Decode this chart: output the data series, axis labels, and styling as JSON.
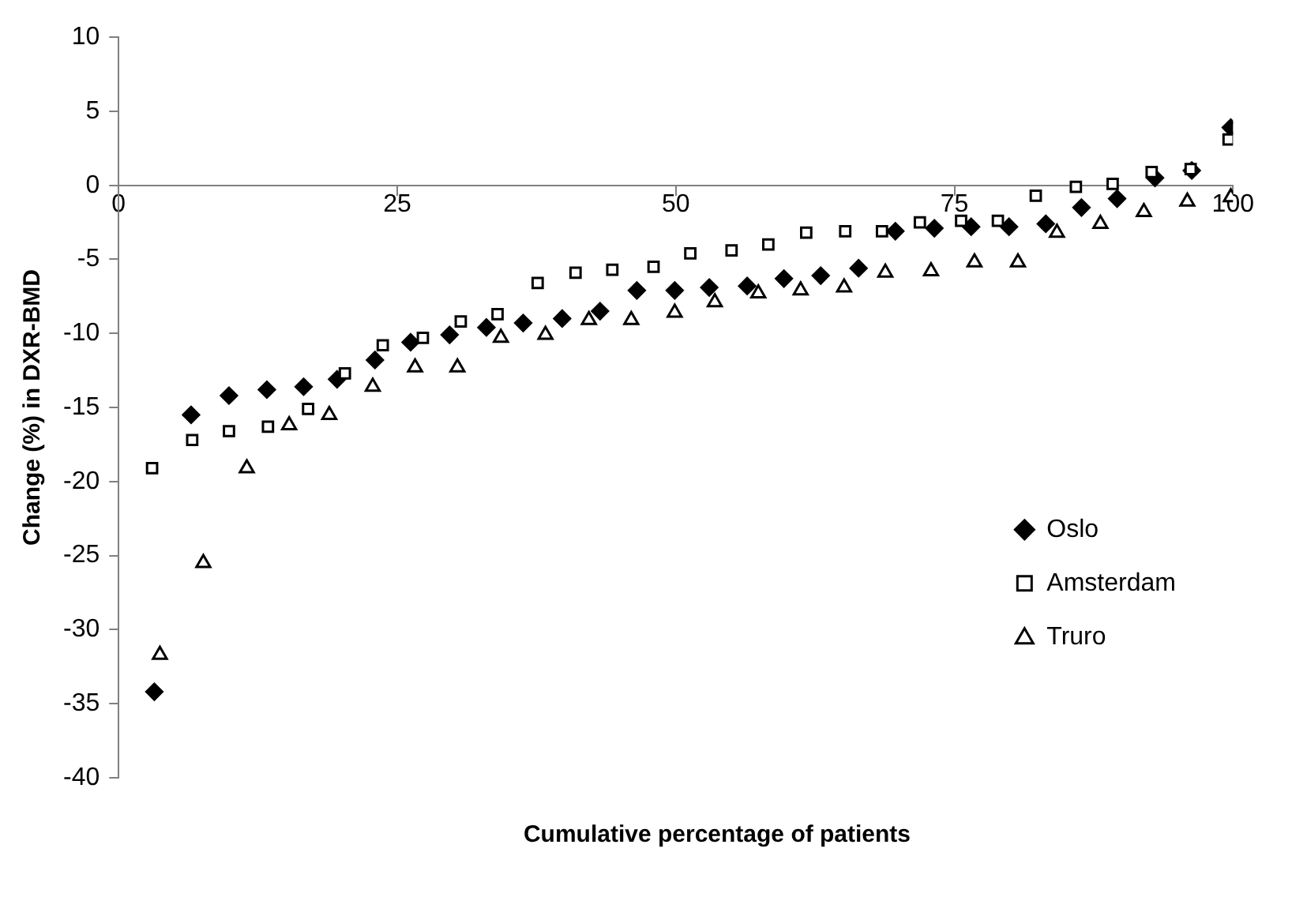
{
  "chart_data": {
    "type": "scatter",
    "xlabel": "Cumulative percentage of patients",
    "ylabel": "Change (%) in DXR-BMD",
    "xlim": [
      0,
      100
    ],
    "xticks": [
      0,
      25,
      50,
      75,
      100
    ],
    "ylim": [
      -40,
      10
    ],
    "yticks": [
      10,
      5,
      0,
      -5,
      -10,
      -15,
      -20,
      -25,
      -30,
      -35,
      -40
    ],
    "grid": false,
    "legend": "bottom right",
    "series": [
      {
        "name": "Oslo",
        "color": "#000000",
        "marker": "diamond",
        "x": [
          3.2,
          6.5,
          9.9,
          13.3,
          16.6,
          19.6,
          23,
          26.2,
          29.7,
          33,
          36.3,
          39.8,
          43.2,
          46.5,
          49.9,
          53,
          56.4,
          59.7,
          63,
          66.4,
          69.7,
          73.2,
          76.5,
          79.9,
          83.2,
          86.4,
          89.6,
          93,
          96.3,
          99.8
        ],
        "values": [
          -34.2,
          -15.5,
          -14.2,
          -13.8,
          -13.6,
          -13.1,
          -11.8,
          -10.6,
          -10.1,
          -9.6,
          -9.3,
          -9,
          -8.5,
          -7.1,
          -7.1,
          -6.9,
          -6.8,
          -6.3,
          -6.1,
          -5.6,
          -3.1,
          -2.9,
          -2.8,
          -2.8,
          -2.6,
          -1.5,
          -0.9,
          0.5,
          1,
          3.9
        ]
      },
      {
        "name": "Amsterdam",
        "color": "#000000",
        "marker": "square",
        "x": [
          3,
          6.6,
          9.9,
          13.4,
          17,
          20.3,
          23.7,
          27.3,
          30.7,
          34,
          37.6,
          41,
          44.3,
          48,
          51.3,
          55,
          58.3,
          61.7,
          65.2,
          68.5,
          71.9,
          75.6,
          78.9,
          82.3,
          85.9,
          89.2,
          92.7,
          96.2,
          99.6
        ],
        "values": [
          -19.1,
          -17.2,
          -16.6,
          -16.3,
          -15.1,
          -12.7,
          -10.8,
          -10.3,
          -9.2,
          -8.7,
          -6.6,
          -5.9,
          -5.7,
          -5.5,
          -4.6,
          -4.4,
          -4,
          -3.2,
          -3.1,
          -3.1,
          -2.5,
          -2.4,
          -2.4,
          -0.7,
          -0.1,
          0.1,
          0.9,
          1.1,
          3.1
        ]
      },
      {
        "name": "Truro",
        "color": "#000000",
        "marker": "triangle",
        "x": [
          3.7,
          7.6,
          11.5,
          15.3,
          18.9,
          22.8,
          26.6,
          30.4,
          34.3,
          38.3,
          42.2,
          46,
          49.9,
          53.5,
          57.4,
          61.2,
          65.1,
          68.8,
          72.9,
          76.8,
          80.7,
          84.2,
          88.1,
          92,
          95.9,
          99.8
        ],
        "values": [
          -31.7,
          -25.5,
          -19.1,
          -16.2,
          -15.5,
          -13.6,
          -12.3,
          -12.3,
          -10.3,
          -10.1,
          -9.1,
          -9.1,
          -8.6,
          -7.9,
          -7.3,
          -7.1,
          -6.9,
          -5.9,
          -5.8,
          -5.2,
          -5.2,
          -3.2,
          -2.6,
          -1.8,
          -1.1,
          -0.8
        ]
      }
    ]
  }
}
